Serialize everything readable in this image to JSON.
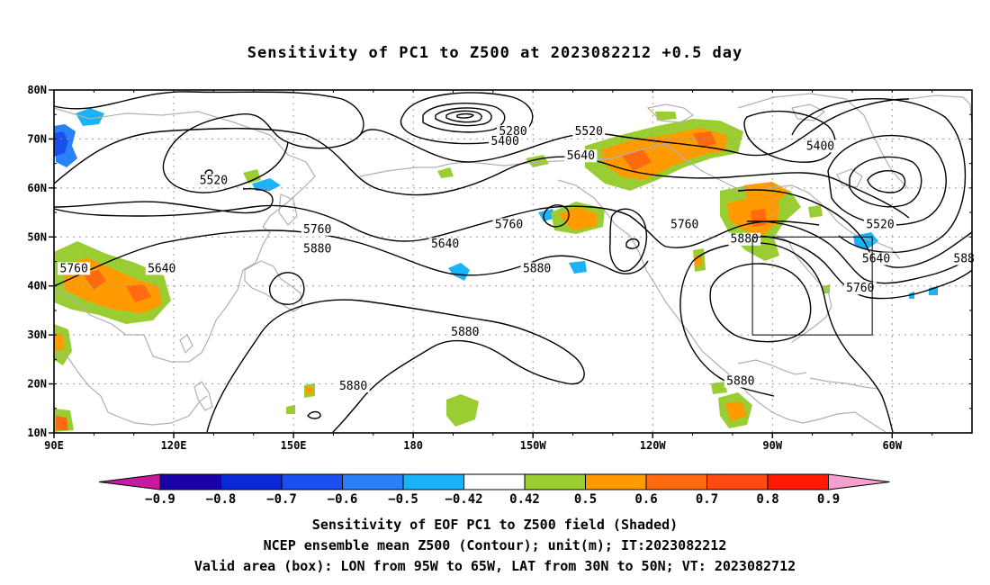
{
  "title": "Sensitivity of PC1 to Z500 at 2023082212 +0.5 day",
  "captions": [
    "Sensitivity of EOF PC1 to Z500 field (Shaded)",
    "NCEP ensemble mean Z500 (Contour); unit(m); IT:2023082212",
    "Valid area (box): LON from 95W to 65W, LAT from 30N to 50N; VT: 2023082712"
  ],
  "axes": {
    "lon_min": 90,
    "lon_max": 320,
    "lat_min": 10,
    "lat_max": 80,
    "lat_ticks": [
      {
        "value": 80,
        "label": "80N"
      },
      {
        "value": 70,
        "label": "70N"
      },
      {
        "value": 60,
        "label": "60N"
      },
      {
        "value": 50,
        "label": "50N"
      },
      {
        "value": 40,
        "label": "40N"
      },
      {
        "value": 30,
        "label": "30N"
      },
      {
        "value": 20,
        "label": "20N"
      },
      {
        "value": 10,
        "label": "10N"
      }
    ],
    "lon_ticks": [
      {
        "value": 90,
        "label": "90E"
      },
      {
        "value": 120,
        "label": "120E"
      },
      {
        "value": 150,
        "label": "150E"
      },
      {
        "value": 180,
        "label": "180"
      },
      {
        "value": 210,
        "label": "150W"
      },
      {
        "value": 240,
        "label": "120W"
      },
      {
        "value": 270,
        "label": "90W"
      },
      {
        "value": 300,
        "label": "60W"
      }
    ]
  },
  "valid_box": {
    "lon_min": 265,
    "lon_max": 295,
    "lat_min": 30,
    "lat_max": 50
  },
  "colorbar": {
    "labels": [
      "-0.9",
      "-0.8",
      "-0.7",
      "-0.6",
      "-0.5",
      "-0.42",
      "0.42",
      "0.5",
      "0.6",
      "0.7",
      "0.8",
      "0.9"
    ],
    "colors": [
      "#1a00a8",
      "#0a28d8",
      "#1a50f0",
      "#2a80f8",
      "#1ab2f8",
      "#ffffff",
      "#9acd32",
      "#ff9a00",
      "#ff6a10",
      "#ff4a10",
      "#ff1a00"
    ],
    "low_extend_color": "#c81aa0",
    "high_extend_color": "#f5a0cc"
  },
  "contour_labels": [
    {
      "text": "5280",
      "lon": 205,
      "lat": 71
    },
    {
      "text": "5400",
      "lon": 203,
      "lat": 69
    },
    {
      "text": "5520",
      "lon": 224,
      "lat": 71
    },
    {
      "text": "5640",
      "lon": 222,
      "lat": 66
    },
    {
      "text": "5400",
      "lon": 282,
      "lat": 68
    },
    {
      "text": "5520",
      "lon": 130,
      "lat": 61
    },
    {
      "text": "5640",
      "lon": 117,
      "lat": 43
    },
    {
      "text": "5760",
      "lon": 95,
      "lat": 43
    },
    {
      "text": "5760",
      "lon": 156,
      "lat": 51
    },
    {
      "text": "5880",
      "lon": 156,
      "lat": 47
    },
    {
      "text": "5640",
      "lon": 188,
      "lat": 48
    },
    {
      "text": "5760",
      "lon": 204,
      "lat": 52
    },
    {
      "text": "5880",
      "lon": 211,
      "lat": 43
    },
    {
      "text": "5760",
      "lon": 248,
      "lat": 52
    },
    {
      "text": "5880",
      "lon": 263,
      "lat": 49
    },
    {
      "text": "5520",
      "lon": 297,
      "lat": 52
    },
    {
      "text": "5640",
      "lon": 296,
      "lat": 45
    },
    {
      "text": "5760",
      "lon": 292,
      "lat": 39
    },
    {
      "text": "588",
      "lon": 318,
      "lat": 45
    },
    {
      "text": "5880",
      "lon": 193,
      "lat": 30
    },
    {
      "text": "5880",
      "lon": 165,
      "lat": 19
    },
    {
      "text": "5880",
      "lon": 262,
      "lat": 20
    }
  ]
}
